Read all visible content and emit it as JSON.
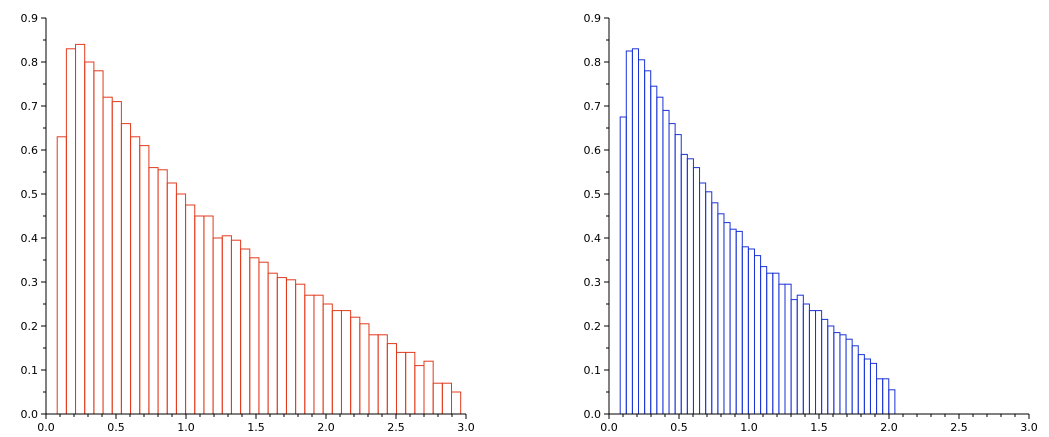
{
  "chart_data": [
    {
      "type": "bar",
      "title": "",
      "xlabel": "",
      "ylabel": "",
      "bar_color": "#e23a1c",
      "xlim": [
        0.0,
        3.0
      ],
      "ylim": [
        0.0,
        0.9
      ],
      "grid": false,
      "x_ticks": [
        "0.0",
        "0.5",
        "1.0",
        "1.5",
        "2.0",
        "2.5",
        "3.0"
      ],
      "y_ticks": [
        "0.0",
        "0.1",
        "0.2",
        "0.3",
        "0.4",
        "0.5",
        "0.6",
        "0.7",
        "0.8",
        "0.9"
      ],
      "bin_start": 0.08,
      "bin_width": 0.0655,
      "values": [
        0.63,
        0.83,
        0.84,
        0.8,
        0.78,
        0.72,
        0.71,
        0.66,
        0.63,
        0.61,
        0.56,
        0.555,
        0.525,
        0.5,
        0.475,
        0.45,
        0.45,
        0.4,
        0.405,
        0.395,
        0.375,
        0.355,
        0.345,
        0.32,
        0.31,
        0.305,
        0.295,
        0.27,
        0.27,
        0.25,
        0.235,
        0.235,
        0.22,
        0.205,
        0.18,
        0.18,
        0.16,
        0.14,
        0.14,
        0.11,
        0.12,
        0.07,
        0.07,
        0.05
      ]
    },
    {
      "type": "bar",
      "title": "",
      "xlabel": "",
      "ylabel": "",
      "bar_color": "#1a33d6",
      "xlim": [
        0.0,
        3.0
      ],
      "ylim": [
        0.0,
        0.9
      ],
      "grid": false,
      "x_ticks": [
        "0.0",
        "0.5",
        "1.0",
        "1.5",
        "2.0",
        "2.5",
        "3.0"
      ],
      "y_ticks": [
        "0.0",
        "0.1",
        "0.2",
        "0.3",
        "0.4",
        "0.5",
        "0.6",
        "0.7",
        "0.8",
        "0.9"
      ],
      "bin_start": 0.08,
      "bin_width": 0.0436,
      "values": [
        0.675,
        0.825,
        0.83,
        0.805,
        0.78,
        0.745,
        0.72,
        0.69,
        0.66,
        0.635,
        0.59,
        0.58,
        0.56,
        0.525,
        0.505,
        0.48,
        0.455,
        0.435,
        0.42,
        0.415,
        0.38,
        0.375,
        0.36,
        0.335,
        0.32,
        0.32,
        0.295,
        0.295,
        0.26,
        0.27,
        0.25,
        0.235,
        0.235,
        0.215,
        0.2,
        0.185,
        0.18,
        0.17,
        0.155,
        0.135,
        0.125,
        0.115,
        0.08,
        0.08,
        0.055
      ]
    }
  ]
}
